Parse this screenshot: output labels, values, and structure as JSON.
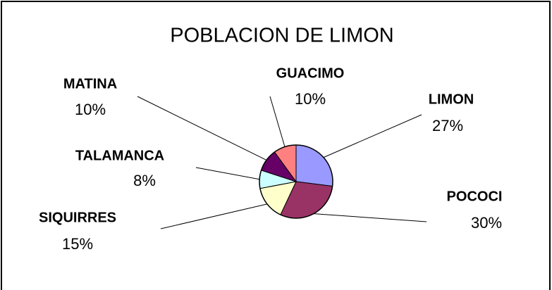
{
  "chart_data": {
    "type": "pie",
    "title": "POBLACION DE LIMON",
    "categories": [
      "LIMON",
      "POCOCI",
      "SIQUIRRES",
      "TALAMANCA",
      "MATINA",
      "GUACIMO"
    ],
    "values": [
      27,
      30,
      15,
      8,
      10,
      10
    ],
    "value_labels": [
      "27%",
      "30%",
      "15%",
      "8%",
      "10%",
      "10%"
    ],
    "colors": [
      "#9999ff",
      "#993366",
      "#ffffcc",
      "#ccffff",
      "#660066",
      "#ff8080"
    ]
  }
}
